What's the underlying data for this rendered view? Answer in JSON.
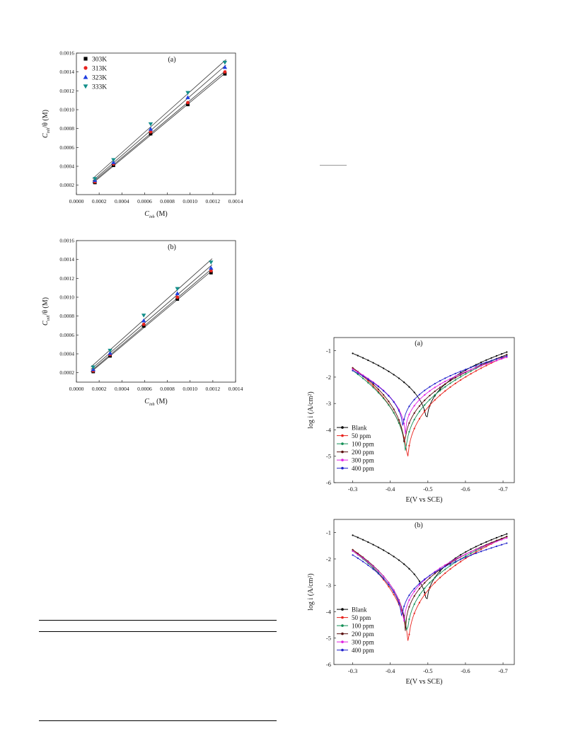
{
  "charts": [
    {
      "kind": "langmuir",
      "title": "(a)",
      "ylabel_main": "C",
      "ylabel_sub": "inh",
      "ylabel_rest": "/θ (M)",
      "xlabel_main": "C",
      "xlabel_sub": "inh",
      "xlabel_rest": " (M)",
      "xlim": [
        0,
        0.0014
      ],
      "ylim": [
        0.0001,
        0.0016
      ],
      "xticks": [
        "0.0000",
        "0.0002",
        "0.0004",
        "0.0006",
        "0.0008",
        "0.0010",
        "0.0012",
        "0.0014"
      ],
      "yticks": [
        "0.0002",
        "0.0004",
        "0.0006",
        "0.0008",
        "0.0010",
        "0.0012",
        "0.0014",
        "0.0016"
      ],
      "legend": [
        "303K",
        "313K",
        "323K",
        "333K"
      ]
    },
    {
      "kind": "langmuir",
      "title": "(b)",
      "ylabel_main": "C",
      "ylabel_sub": "inh",
      "ylabel_rest": "/θ (M)",
      "xlabel_main": "C",
      "xlabel_sub": "inh",
      "xlabel_rest": " (M)",
      "xlim": [
        0,
        0.0014
      ],
      "ylim": [
        0.0001,
        0.0016
      ],
      "xticks": [
        "0.0000",
        "0.0002",
        "0.0004",
        "0.0006",
        "0.0008",
        "0.0010",
        "0.0012",
        "0.0014"
      ],
      "yticks": [
        "0.0002",
        "0.0004",
        "0.0006",
        "0.0008",
        "0.0010",
        "0.0012",
        "0.0014",
        "0.0016"
      ],
      "legend": []
    },
    {
      "kind": "tafel",
      "title": "(a)",
      "ylabel": "log i (A/cm²)",
      "xlabel": "E(V vs SCE)",
      "xticks": [
        "-0.3",
        "-0.4",
        "-0.5",
        "-0.6",
        "-0.7"
      ],
      "yticks": [
        "-1",
        "-2",
        "-3",
        "-4",
        "-5",
        "-6"
      ],
      "legend": [
        "Blank",
        "50 ppm",
        "100 ppm",
        "200 ppm",
        "300 ppm",
        "400 ppm"
      ]
    },
    {
      "kind": "tafel",
      "title": "(b)",
      "ylabel": "log i (A/cm²)",
      "xlabel": "E(V vs SCE)",
      "xticks": [
        "-0.3",
        "-0.4",
        "-0.5",
        "-0.6",
        "-0.7"
      ],
      "yticks": [
        "-1",
        "-2",
        "-3",
        "-4",
        "-5",
        "-6"
      ],
      "legend": [
        "Blank",
        "50 ppm",
        "100 ppm",
        "200 ppm",
        "300 ppm",
        "400 ppm"
      ]
    }
  ],
  "chart_data": [
    {
      "type": "scatter",
      "title": "(a)",
      "xlabel": "Cinh (M)",
      "ylabel": "Cinh/θ (M)",
      "xlim": [
        0,
        0.0014
      ],
      "ylim": [
        0.0001,
        0.0016
      ],
      "x": [
        0.000163,
        0.000326,
        0.000653,
        0.00098,
        0.001306
      ],
      "series": [
        {
          "name": "303K",
          "color": "#000000",
          "marker": "square",
          "values": [
            0.000228,
            0.00041,
            0.000745,
            0.001055,
            0.00138
          ]
        },
        {
          "name": "313K",
          "color": "#e8231e",
          "marker": "circle",
          "values": [
            0.000236,
            0.000425,
            0.000765,
            0.001075,
            0.0014
          ]
        },
        {
          "name": "323K",
          "color": "#1f3ee0",
          "marker": "triangle",
          "values": [
            0.000252,
            0.000442,
            0.000795,
            0.00113,
            0.00145
          ]
        },
        {
          "name": "333K",
          "color": "#138f8a",
          "marker": "triangle-down",
          "values": [
            0.000268,
            0.000468,
            0.000848,
            0.00118,
            0.0015
          ]
        }
      ]
    },
    {
      "type": "scatter",
      "title": "(b)",
      "xlabel": "Cinh (M)",
      "ylabel": "Cinh/θ (M)",
      "xlim": [
        0,
        0.0014
      ],
      "ylim": [
        0.0001,
        0.0016
      ],
      "x": [
        0.000148,
        0.000296,
        0.000592,
        0.000888,
        0.001184
      ],
      "series": [
        {
          "name": "303K",
          "color": "#000000",
          "marker": "square",
          "values": [
            0.000212,
            0.000378,
            0.000695,
            0.00098,
            0.00126
          ]
        },
        {
          "name": "313K",
          "color": "#e8231e",
          "marker": "circle",
          "values": [
            0.00022,
            0.000392,
            0.000712,
            0.001,
            0.00128
          ]
        },
        {
          "name": "323K",
          "color": "#1f3ee0",
          "marker": "triangle",
          "values": [
            0.000235,
            0.000408,
            0.000752,
            0.00104,
            0.00131
          ]
        },
        {
          "name": "333K",
          "color": "#138f8a",
          "marker": "triangle-down",
          "values": [
            0.000258,
            0.000435,
            0.000808,
            0.00109,
            0.00137
          ]
        }
      ]
    },
    {
      "type": "line",
      "title": "(a)",
      "xlabel": "E(V vs SCE)",
      "ylabel": "log i (A/cm²)",
      "xlim": [
        -0.25,
        -0.73
      ],
      "ylim": [
        -6,
        -0.5
      ],
      "series": [
        {
          "name": "Blank",
          "color": "#000000",
          "ecorr": -0.497,
          "jcorr": -3.9,
          "ba": 2.3,
          "bc": 0.46,
          "ja": -1.05,
          "jc": -1.1
        },
        {
          "name": "50 ppm",
          "color": "#e8231e",
          "ecorr": -0.446,
          "jcorr": -5.5,
          "ba": 2.05,
          "bc": 0.9,
          "ja": -1.2,
          "jc": -1.65
        },
        {
          "name": "100 ppm",
          "color": "#138f55",
          "ecorr": -0.441,
          "jcorr": -5.2,
          "ba": 2.0,
          "bc": 0.86,
          "ja": -1.15,
          "jc": -1.75
        },
        {
          "name": "200 ppm",
          "color": "#5a0f0f",
          "ecorr": -0.438,
          "jcorr": -4.9,
          "ba": 1.95,
          "bc": 0.92,
          "ja": -1.15,
          "jc": -1.65
        },
        {
          "name": "300 ppm",
          "color": "#e020e0",
          "ecorr": -0.44,
          "jcorr": -4.3,
          "ba": 2.1,
          "bc": 1.0,
          "ja": -1.25,
          "jc": -1.7
        },
        {
          "name": "400 ppm",
          "color": "#2222cc",
          "ecorr": -0.434,
          "jcorr": -4.1,
          "ba": 2.0,
          "bc": 1.05,
          "ja": -1.2,
          "jc": -1.75
        }
      ]
    },
    {
      "type": "line",
      "title": "(b)",
      "xlabel": "E(V vs SCE)",
      "ylabel": "log i (A/cm²)",
      "xlim": [
        -0.25,
        -0.73
      ],
      "ylim": [
        -6,
        -0.5
      ],
      "series": [
        {
          "name": "Blank",
          "color": "#000000",
          "ecorr": -0.497,
          "jcorr": -3.9,
          "ba": 2.3,
          "bc": 0.46,
          "ja": -1.05,
          "jc": -1.1
        },
        {
          "name": "50 ppm",
          "color": "#e8231e",
          "ecorr": -0.448,
          "jcorr": -5.6,
          "ba": 2.05,
          "bc": 0.9,
          "ja": -1.15,
          "jc": -1.65
        },
        {
          "name": "100 ppm",
          "color": "#138f55",
          "ecorr": -0.445,
          "jcorr": -5.2,
          "ba": 2.0,
          "bc": 0.86,
          "ja": -1.15,
          "jc": -1.7
        },
        {
          "name": "200 ppm",
          "color": "#5a0f0f",
          "ecorr": -0.44,
          "jcorr": -4.9,
          "ba": 1.95,
          "bc": 0.92,
          "ja": -1.15,
          "jc": -1.65
        },
        {
          "name": "300 ppm",
          "color": "#e020e0",
          "ecorr": -0.436,
          "jcorr": -4.7,
          "ba": 2.1,
          "bc": 1.0,
          "ja": -1.2,
          "jc": -1.7
        },
        {
          "name": "400 ppm",
          "color": "#2222cc",
          "ecorr": -0.431,
          "jcorr": -4.5,
          "ba": 2.0,
          "bc": 1.05,
          "ja": -1.4,
          "jc": -1.85
        }
      ]
    }
  ]
}
